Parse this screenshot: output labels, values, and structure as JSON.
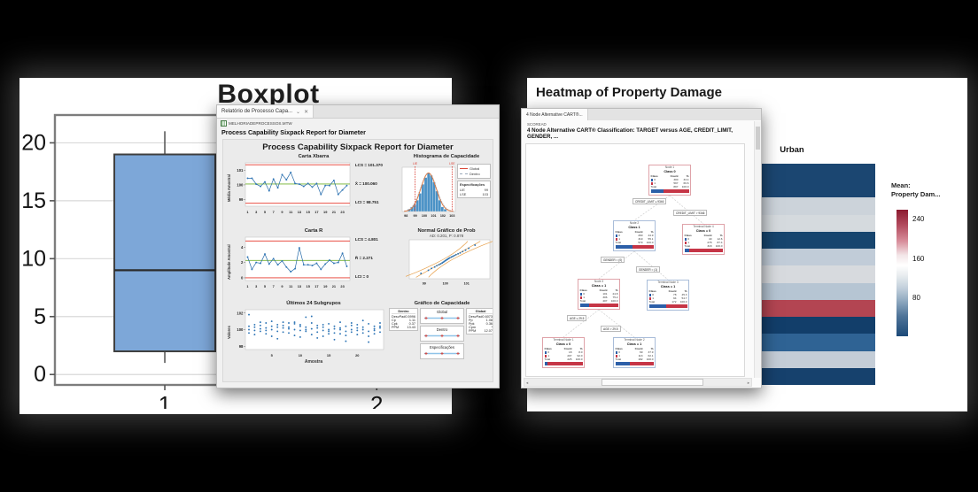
{
  "background": "#000000",
  "boxplot_card": {
    "title": "Boxplot"
  },
  "sixpack_window": {
    "tab_label": "Relatório de Processo Capa...",
    "collapse_icon": "⌄",
    "close_icon": "✕",
    "worksheet": "MELHORIADEPROCESSOS.MTW",
    "heading": "Process Capability Sixpack Report for Diameter",
    "report_title": "Process Capability Sixpack Report for Diameter",
    "charts": {
      "xbar": {
        "title": "Carta Xbarra",
        "ylabel": "Média Amostral",
        "annotations": [
          "LCS = 101.370",
          "X̄ = 100.060",
          "LCI = 98.751"
        ]
      },
      "r": {
        "title": "Carta R",
        "ylabel": "Amplitude Amostral",
        "annotations": [
          "LCS = 4.801",
          "R̄ = 2.271",
          "LCI = 0"
        ]
      },
      "subgroups": {
        "title": "Últimos 24 Subgrupos",
        "ylabel": "Valores",
        "xlabel": "Amostra"
      },
      "hist": {
        "title": "Histograma de Capacidade",
        "legend": [
          {
            "label": "Global",
            "color": "#d9493a",
            "dash": false
          },
          {
            "label": "Dentro",
            "color": "#9aaabb",
            "dash": true
          }
        ],
        "specs_title": "Especificações",
        "specs": [
          [
            "LIE",
            "99"
          ],
          [
            "LSE",
            "103"
          ]
        ]
      },
      "prob": {
        "title": "Normal Gráfico de Prob",
        "subtitle": "AD: 0.201, P: 0.878"
      },
      "capability": {
        "title": "Gráfico de Capacidade",
        "dentro": {
          "title": "Dentro",
          "rows": [
            [
              "DesvPad",
              "0.5996"
            ],
            [
              "Cp",
              "1.11"
            ],
            [
              "Cpk",
              "0.37"
            ],
            [
              "PPM",
              "13.43"
            ]
          ]
        },
        "global": {
          "title": "Global",
          "rows": [
            [
              "DesvPad",
              "0.6073"
            ],
            [
              "Pp",
              "1.08"
            ],
            [
              "Ppk",
              "0.36"
            ],
            [
              "Cpm",
              "*"
            ],
            [
              "PPM",
              "12.07"
            ]
          ]
        },
        "intervals": [
          "Global",
          "Dentro",
          "Especificações"
        ]
      }
    }
  },
  "cart_window": {
    "tab_label": "4 Node Alternative CART®...",
    "worksheet": "SCOREAD",
    "heading": "4 Node Alternative CART® Classification: TARGET versus AGE, CREDIT_LIMIT, GENDER, ...",
    "tree": {
      "bar_colors": {
        "class0": "#2c5fa8",
        "class1": "#c63546"
      },
      "nodes": [
        {
          "id": "n1",
          "border": "red",
          "title": "Node 1",
          "class_label": "Class 0",
          "header": [
            "Class",
            "Count",
            "%"
          ],
          "rows": [
            [
              "0",
              "300",
              "33.4"
            ],
            [
              "1",
              "597",
              "66.6"
            ]
          ],
          "total": [
            "Total",
            "897",
            "100.0"
          ],
          "bar_pct": 33.4
        },
        {
          "id": "n2",
          "border": "blue",
          "title": "Node 2",
          "class_label": "Class 1",
          "header": [
            "Class",
            "Count",
            "%"
          ],
          "rows": [
            [
              "0",
              "260",
              "44.9"
            ],
            [
              "1",
              "319",
              "55.1"
            ]
          ],
          "total": [
            "Total",
            "579",
            "100.0"
          ],
          "bar_pct": 44.9
        },
        {
          "id": "n3",
          "border": "red",
          "title": "Terminal Node 4",
          "class_label": "Class = 0",
          "header": [
            "Class",
            "Count",
            "%"
          ],
          "rows": [
            [
              "0",
              "40",
              "12.6"
            ],
            [
              "1",
              "278",
              "87.4"
            ]
          ],
          "total": [
            "Total",
            "318",
            "100.0"
          ],
          "bar_pct": 12.6
        },
        {
          "id": "n4",
          "border": "red",
          "title": "Node 3",
          "class_label": "Class = 1",
          "header": [
            "Class",
            "Count",
            "%"
          ],
          "rows": [
            [
              "0",
              "101",
              "24.8"
            ],
            [
              "1",
              "306",
              "75.2"
            ]
          ],
          "total": [
            "Total",
            "407",
            "100.0"
          ],
          "bar_pct": 24.8
        },
        {
          "id": "n5",
          "border": "blue",
          "title": "Terminal Node 3",
          "class_label": "Class = 1",
          "header": [
            "Class",
            "Count",
            "%"
          ],
          "rows": [
            [
              "0",
              "78",
              "45.3"
            ],
            [
              "1",
              "94",
              "54.7"
            ]
          ],
          "total": [
            "Total",
            "172",
            "100.0"
          ],
          "bar_pct": 45.3
        },
        {
          "id": "n6",
          "border": "red",
          "title": "Terminal Node 1",
          "class_label": "Class = 0",
          "header": [
            "Class",
            "Count",
            "%"
          ],
          "rows": [
            [
              "0",
              "18",
              "8.0"
            ],
            [
              "1",
              "207",
              "92.0"
            ]
          ],
          "total": [
            "Total",
            "225",
            "100.0"
          ],
          "bar_pct": 8.0
        },
        {
          "id": "n7",
          "border": "blue",
          "title": "Terminal Node 2",
          "class_label": "Class = 1",
          "header": [
            "Class",
            "Count",
            "%"
          ],
          "rows": [
            [
              "0",
              "69",
              "37.9"
            ],
            [
              "1",
              "113",
              "62.1"
            ]
          ],
          "total": [
            "Total",
            "182",
            "100.0"
          ],
          "bar_pct": 37.9
        }
      ],
      "splits": [
        {
          "id": "s1",
          "label": "CREDIT_LIMIT ≤ 9346"
        },
        {
          "id": "s2",
          "label": "CREDIT_LIMIT > 9346"
        },
        {
          "id": "s3",
          "label": "GENDER = (0)"
        },
        {
          "id": "s4",
          "label": "GENDER = (1)"
        },
        {
          "id": "s5",
          "label": "AGE ≤ 29.5"
        },
        {
          "id": "s6",
          "label": "AGE > 29.5"
        }
      ]
    }
  },
  "heatmap_card": {
    "title": "Heatmap of Property Damage",
    "column_header": "Urban",
    "legend": {
      "title_line1": "Mean:",
      "title_line2": "Property Dam...",
      "ticks": [
        "240",
        "160",
        "80"
      ],
      "tick_pos": [
        7,
        38.5,
        69
      ],
      "gradient": [
        "#8c1b30 0%",
        "#b24a5d 12%",
        "#d88e9b 25%",
        "#f3e6e8 36%",
        "#ffffff 44%",
        "#e8ecef 52%",
        "#c2cfdb 62%",
        "#8fa9c0 72%",
        "#4f7499 84%",
        "#1c4a78 100%"
      ]
    }
  },
  "chart_data": {
    "boxplot": {
      "type": "box",
      "title": "Boxplot",
      "categories": [
        "1",
        "2"
      ],
      "yticks": [
        0,
        5,
        10,
        15,
        20
      ],
      "ymin": -0.9,
      "ymax": 22.4,
      "boxes": [
        {
          "category": "1",
          "whisker_low": 1,
          "q1": 2,
          "median": 9,
          "q3": 19,
          "whisker_high": 21
        }
      ]
    },
    "xbar": {
      "type": "line",
      "title": "Carta Xbarra",
      "ylabel": "Média Amostral",
      "yticks": [
        99,
        100,
        101
      ],
      "ymin": 98.55,
      "ymax": 101.5,
      "ucl": 101.37,
      "center": 100.06,
      "lcl": 98.751,
      "xticks": [
        1,
        3,
        5,
        7,
        9,
        11,
        13,
        15,
        17,
        19,
        21,
        23
      ],
      "values": [
        100.45,
        100.45,
        100.05,
        99.9,
        100.2,
        99.6,
        100.4,
        99.8,
        100.7,
        100.35,
        100.85,
        100.1,
        100.05,
        99.9,
        100.1,
        99.85,
        100.1,
        99.35,
        99.95,
        99.95,
        100.3,
        99.35,
        99.65,
        99.95
      ]
    },
    "r": {
      "type": "line",
      "title": "Carta R",
      "ylabel": "Amplitude Amostral",
      "yticks": [
        0,
        2,
        4
      ],
      "ymin": -0.35,
      "ymax": 5.3,
      "ucl": 4.801,
      "center": 2.271,
      "lcl": 0,
      "xticks": [
        1,
        3,
        5,
        7,
        9,
        11,
        13,
        15,
        17,
        19,
        21,
        23
      ],
      "values": [
        2.7,
        1.1,
        2.0,
        1.9,
        3.1,
        1.8,
        2.5,
        1.7,
        2.2,
        1.4,
        0.8,
        1.2,
        3.9,
        1.7,
        1.7,
        1.6,
        1.9,
        1.1,
        1.8,
        2.3,
        1.9,
        2.0,
        3.2,
        1.5
      ]
    },
    "subgroups": {
      "type": "scatter",
      "title": "Últimos 24 Subgrupos",
      "ylabel": "Valores",
      "xlabel": "Amostra",
      "yticks": [
        98,
        100,
        102
      ],
      "ymin": 97.6,
      "ymax": 102.4,
      "xticks": [
        5,
        10,
        15,
        20
      ],
      "groups": [
        [
          100.4,
          100.0,
          99.6,
          101.8
        ],
        [
          100.3,
          99.9,
          100.6,
          99.4
        ],
        [
          100.5,
          100.1,
          99.8,
          100.9
        ],
        [
          100.2,
          99.5,
          100.8,
          99.9
        ],
        [
          101.0,
          100.4,
          99.2,
          100.0
        ],
        [
          100.6,
          99.8,
          100.3,
          98.9
        ],
        [
          100.9,
          100.2,
          99.7,
          100.5
        ],
        [
          100.1,
          99.6,
          100.8,
          100.3
        ],
        [
          100.7,
          100.0,
          99.3,
          100.9
        ],
        [
          100.4,
          99.9,
          100.6,
          99.1
        ],
        [
          101.5,
          100.3,
          99.8,
          100.0
        ],
        [
          100.8,
          100.1,
          99.4,
          101.6
        ],
        [
          100.2,
          99.7,
          100.5,
          99.0
        ],
        [
          100.6,
          99.9,
          99.2,
          100.3
        ],
        [
          100.0,
          99.5,
          100.7,
          99.8
        ],
        [
          100.4,
          100.1,
          98.8,
          99.6
        ],
        [
          100.9,
          100.2,
          99.5,
          100.0
        ],
        [
          99.8,
          99.3,
          100.4,
          98.6
        ],
        [
          100.5,
          100.0,
          99.7,
          100.8
        ],
        [
          100.2,
          99.4,
          100.6,
          99.9
        ],
        [
          101.1,
          100.3,
          99.6,
          100.0
        ],
        [
          100.7,
          99.8,
          98.5,
          99.2
        ],
        [
          100.4,
          99.9,
          100.1,
          99.5
        ],
        [
          100.8,
          100.2,
          99.7,
          100.4
        ]
      ]
    },
    "hist": {
      "type": "bar",
      "title": "Histograma de Capacidade",
      "bin_start": 98.2,
      "bin_width": 0.3,
      "heights": [
        1,
        2,
        3,
        5,
        8,
        12,
        15,
        17,
        16,
        13,
        9,
        5,
        2,
        1
      ],
      "xticks": [
        98,
        99,
        100,
        101,
        102,
        103
      ],
      "xmin": 97.6,
      "xmax": 103.35,
      "lie": 99,
      "lse": 103,
      "lie_label": "LIE",
      "lse_label": "LSE",
      "curve_mean": 100.45,
      "curve_sd": 0.82
    },
    "prob": {
      "type": "scatter",
      "title": "Normal Gráfico de Prob",
      "subtitle": "AD: 0.201, P: 0.878",
      "xticks": [
        99,
        100,
        101
      ],
      "xmin": 98.3,
      "xmax": 102.1,
      "values": [
        98.85,
        99.2,
        99.35,
        99.5,
        99.6,
        99.7,
        99.78,
        99.85,
        99.9,
        99.95,
        100.0,
        100.05,
        100.1,
        100.15,
        100.2,
        100.28,
        100.35,
        100.42,
        100.5,
        100.6,
        100.7,
        100.82,
        100.95,
        101.1,
        101.4
      ]
    },
    "heatmap": {
      "type": "heatmap",
      "columns": [
        "Urban"
      ],
      "legend_ticks": [
        240,
        160,
        80
      ],
      "cell_colors": [
        "#1b4671",
        "#1b4671",
        "#ccd3da",
        "#d5dade",
        "#17456e",
        "#c1ccd8",
        "#d7dade",
        "#b6c5d3",
        "#b34552",
        "#123e6a",
        "#2f6394",
        "#c4cdd7",
        "#16416d"
      ]
    }
  }
}
